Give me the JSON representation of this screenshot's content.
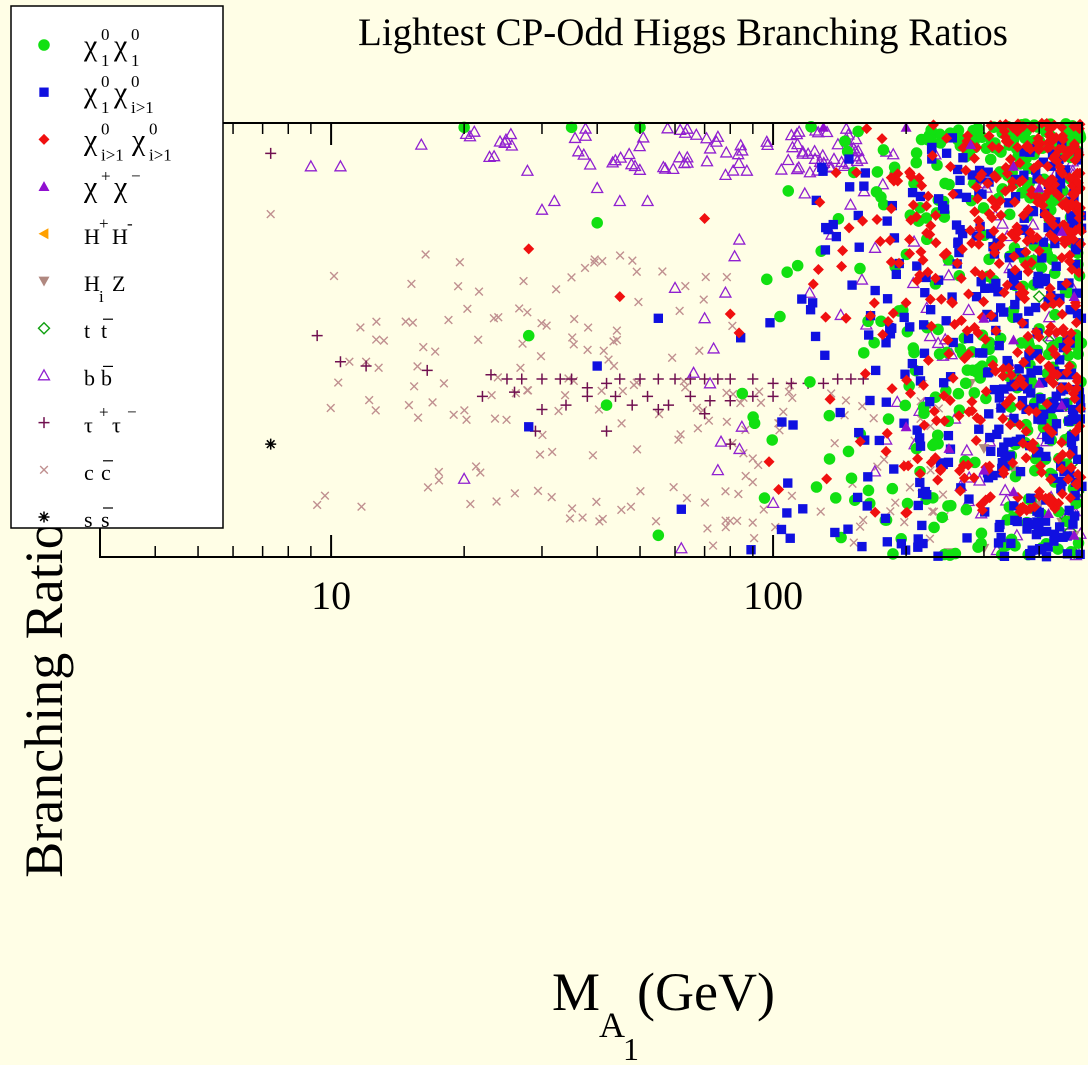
{
  "chart_data": {
    "type": "scatter",
    "title": "Lightest CP-Odd Higgs Branching Ratios",
    "xlabel": {
      "main": "M",
      "sub1": "A",
      "sub2": "1",
      "unit": "(GeV)"
    },
    "ylabel": "Branching Ratio",
    "x_scale": "log",
    "xlim": [
      3,
      500
    ],
    "ylim": [
      0,
      1
    ],
    "x_tick_labels": [
      {
        "value": 10,
        "label": "10"
      },
      {
        "value": 100,
        "label": "100"
      }
    ],
    "x_minor_ticks": [
      4,
      5,
      6,
      7,
      8,
      9,
      20,
      30,
      40,
      50,
      60,
      70,
      80,
      90,
      200,
      300,
      400
    ],
    "y_ticks_left": [
      0.1,
      0.2,
      0.3,
      0.4,
      0.45,
      0.5,
      0.55,
      0.6,
      0.65
    ],
    "legend_position": "top-left",
    "series": [
      {
        "key": "chi01chi01",
        "legend": {
          "a": "χ",
          "sa": "0",
          "ba": "1",
          "b": "χ",
          "sb": "0",
          "bb": "1"
        },
        "color": "#11e011",
        "marker": "circle"
      },
      {
        "key": "chi01chi0i",
        "legend": {
          "a": "χ",
          "sa": "0",
          "ba": "1",
          "b": "χ",
          "sb": "0",
          "bb": "i>1"
        },
        "color": "#1010e0",
        "marker": "square"
      },
      {
        "key": "chi0ichi0i",
        "legend": {
          "a": "χ",
          "sa": "0",
          "ba": "i>1",
          "b": "χ",
          "sb": "0",
          "bb": "i>1"
        },
        "color": "#f01010",
        "marker": "diamond"
      },
      {
        "key": "chipchim",
        "legend": {
          "a": "χ",
          "sa": "+",
          "ba": "",
          "b": "χ",
          "sb": "−",
          "bb": ""
        },
        "color": "#9010d0",
        "marker": "triangle"
      },
      {
        "key": "HpHm",
        "legend": {
          "a": "H",
          "sa": "+",
          "ba": "",
          "b": "H",
          "sb": "-",
          "bb": ""
        },
        "color": "#ffa000",
        "marker": "triangle-left"
      },
      {
        "key": "HiZ",
        "legend": {
          "a": "H",
          "sa": "",
          "ba": "i",
          "b": "Z",
          "sb": "",
          "bb": ""
        },
        "color": "#b08880",
        "marker": "triangle-down"
      },
      {
        "key": "ttbar",
        "legend": {
          "a": "t",
          "sa": "",
          "ba": "",
          "b": "t",
          "sb": "",
          "bb": "",
          "bar": true
        },
        "color": "#10a010",
        "marker": "diamond-open"
      },
      {
        "key": "bbbar",
        "legend": {
          "a": "b",
          "sa": "",
          "ba": "",
          "b": "b",
          "sb": "",
          "bb": "",
          "bar": true
        },
        "color": "#9020d0",
        "marker": "triangle-open"
      },
      {
        "key": "tautau",
        "legend": {
          "a": "τ",
          "sa": "+",
          "ba": "",
          "b": "τ",
          "sb": "−",
          "bb": ""
        },
        "color": "#701050",
        "marker": "plus"
      },
      {
        "key": "ccbar",
        "legend": {
          "a": "c",
          "sa": "",
          "ba": "",
          "b": "c",
          "sb": "",
          "bb": "",
          "bar": true
        },
        "color": "#c09090",
        "marker": "cross"
      },
      {
        "key": "ssbar",
        "legend": {
          "a": "s",
          "sa": "",
          "ba": "",
          "b": "s",
          "sb": "",
          "bb": "",
          "bar": true
        },
        "color": "#000000",
        "marker": "star"
      }
    ],
    "points": {
      "chipchim": [
        [
          130,
          0.99
        ],
        [
          200,
          0.99
        ],
        [
          280,
          0.95
        ],
        [
          350,
          0.9
        ],
        [
          400,
          0.85
        ],
        [
          450,
          0.75
        ],
        [
          480,
          0.6
        ],
        [
          300,
          0.55
        ],
        [
          350,
          0.5
        ],
        [
          400,
          0.4
        ],
        [
          450,
          0.35
        ],
        [
          200,
          0.3
        ],
        [
          250,
          0.25
        ],
        [
          300,
          0.2
        ],
        [
          350,
          0.15
        ],
        [
          420,
          0.1
        ],
        [
          480,
          0.05
        ]
      ],
      "HiZ": [
        [
          280,
          0.4
        ],
        [
          300,
          0.25
        ],
        [
          350,
          0.2
        ],
        [
          400,
          0.12
        ],
        [
          450,
          0.08
        ],
        [
          480,
          0.05
        ],
        [
          300,
          0.02
        ],
        [
          250,
          0.01
        ]
      ],
      "ttbar": [
        [
          370,
          0.7
        ],
        [
          400,
          0.6
        ],
        [
          420,
          0.5
        ],
        [
          440,
          0.42
        ],
        [
          460,
          0.35
        ],
        [
          470,
          0.28
        ],
        [
          480,
          0.22
        ],
        [
          490,
          0.15
        ],
        [
          450,
          0.1
        ],
        [
          470,
          0.06
        ],
        [
          480,
          0.01
        ]
      ],
      "tautau": [
        [
          7.3,
          0.93
        ],
        [
          5.3,
          0.59
        ],
        [
          9.3,
          0.51
        ],
        [
          10.5,
          0.45
        ],
        [
          12,
          0.44
        ],
        [
          16.5,
          0.43
        ],
        [
          23,
          0.42
        ],
        [
          25,
          0.41
        ],
        [
          27,
          0.41
        ],
        [
          30,
          0.41
        ],
        [
          33,
          0.41
        ],
        [
          35,
          0.41
        ],
        [
          38,
          0.39
        ],
        [
          42,
          0.4
        ],
        [
          45,
          0.41
        ],
        [
          50,
          0.41
        ],
        [
          55,
          0.41
        ],
        [
          60,
          0.41
        ],
        [
          65,
          0.41
        ],
        [
          70,
          0.41
        ],
        [
          75,
          0.41
        ],
        [
          80,
          0.41
        ],
        [
          90,
          0.41
        ],
        [
          100,
          0.4
        ],
        [
          110,
          0.4
        ],
        [
          120,
          0.4
        ],
        [
          130,
          0.4
        ],
        [
          140,
          0.41
        ],
        [
          150,
          0.41
        ],
        [
          160,
          0.41
        ],
        [
          22,
          0.37
        ],
        [
          26,
          0.38
        ],
        [
          30,
          0.34
        ],
        [
          34,
          0.35
        ],
        [
          38,
          0.37
        ],
        [
          44,
          0.37
        ],
        [
          48,
          0.35
        ],
        [
          52,
          0.37
        ],
        [
          58,
          0.35
        ],
        [
          65,
          0.37
        ],
        [
          72,
          0.36
        ],
        [
          80,
          0.36
        ],
        [
          90,
          0.37
        ],
        [
          100,
          0.37
        ],
        [
          29,
          0.29
        ],
        [
          42,
          0.29
        ],
        [
          55,
          0.34
        ],
        [
          70,
          0.33
        ],
        [
          80,
          0.26
        ]
      ],
      "ssbar": [
        [
          7.3,
          0.26
        ]
      ]
    }
  }
}
